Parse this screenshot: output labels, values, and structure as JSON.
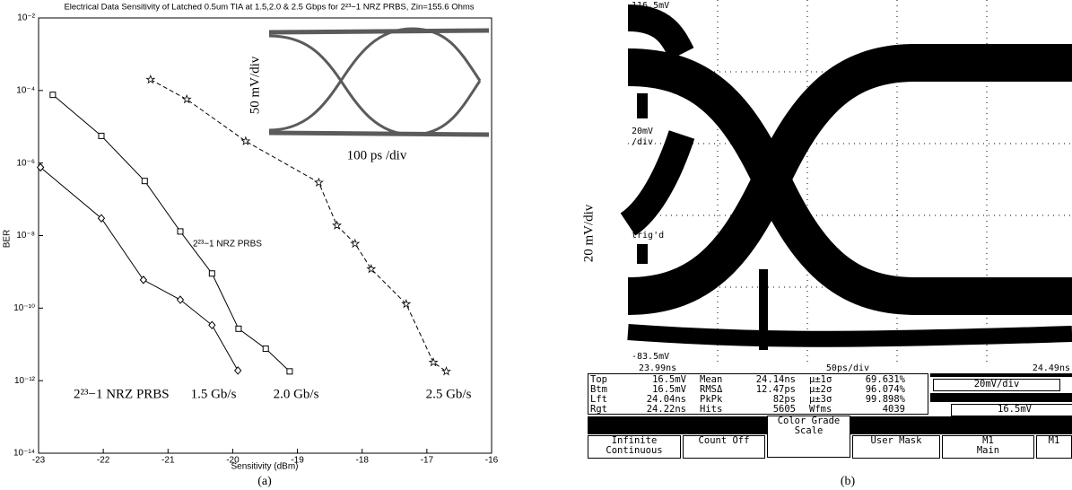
{
  "chart_data": {
    "type": "line",
    "title": "Electrical Data Sensitivity of Latched 0.5um TIA at 1.5,2.0 & 2.5 Gbps for 2²³−1 NRZ PRBS, Zin=155.6 Ohms",
    "x_label": "Sensitivity (dBm)",
    "y_label": "BER",
    "caption": "(a)",
    "xlim": [
      -23,
      -16
    ],
    "xticks": [
      -23,
      -22,
      -21,
      -20,
      -19,
      -18,
      -17,
      -16
    ],
    "ylim": [
      1e-14,
      0.01
    ],
    "log_y": true,
    "yticks": [
      {
        "value": 1e-14,
        "label": "10⁻¹⁴"
      },
      {
        "value": 1e-12,
        "label": "10⁻¹²"
      },
      {
        "value": 1e-10,
        "label": "10⁻¹⁰"
      },
      {
        "value": 1e-08,
        "label": "10⁻⁸"
      },
      {
        "value": 1e-06,
        "label": "10⁻⁶"
      },
      {
        "value": 0.0001,
        "label": "10⁻⁴"
      },
      {
        "value": 0.01,
        "label": "10⁻²"
      }
    ],
    "series": [
      {
        "name": "1.5 Gb/s",
        "color": "#000000",
        "marker": "diamond",
        "dashed": false,
        "x": [
          -22.97,
          -22.03,
          -21.38,
          -20.81,
          -20.32,
          -19.92
        ],
        "values": [
          7.6e-07,
          3e-08,
          6e-10,
          1.7e-10,
          3.4e-11,
          1.9e-12
        ]
      },
      {
        "name": "2.0 Gb/s",
        "color": "#000000",
        "marker": "square",
        "dashed": false,
        "x": [
          -22.78,
          -22.03,
          -21.36,
          -20.81,
          -20.32,
          -19.91,
          -19.49,
          -19.12
        ],
        "values": [
          7.6e-05,
          5.6e-06,
          3.2e-07,
          1.3e-08,
          9e-10,
          2.7e-11,
          7.6e-12,
          1.8e-12
        ]
      },
      {
        "name": "2.5 Gb/s",
        "color": "#000000",
        "marker": "star",
        "dashed": true,
        "x": [
          -21.27,
          -20.71,
          -19.8,
          -18.67,
          -18.39,
          -18.11,
          -17.86,
          -17.32,
          -16.9,
          -16.7
        ],
        "values": [
          0.0002,
          5.7e-05,
          4e-06,
          2.9e-07,
          1.9e-08,
          6e-09,
          1.2e-09,
          1.3e-10,
          3.2e-12,
          1.8e-12
        ]
      }
    ],
    "annotations": [
      "2²³−1 NRZ PRBS",
      "2²³−1 NRZ PRBS"
    ],
    "inset": {
      "y_label": "50 mV/div",
      "x_label": "100 ps /div"
    }
  },
  "scope": {
    "axis_label": "20 mV/div",
    "top_level": "116.5mV",
    "bottom_level": "-83.5mV",
    "time_start": "23.99ns",
    "time_scale": "50ps/div",
    "time_end": "24.49ns",
    "side_scale": [
      "20mV",
      "/div"
    ],
    "trig_status": "trig'd",
    "measurements": [
      [
        [
          "Top",
          "16.5mV"
        ],
        [
          "Mean",
          "24.14ns"
        ],
        [
          "μ±1σ",
          "69.631%"
        ]
      ],
      [
        [
          "Btm",
          "16.5mV"
        ],
        [
          "RMSΔ",
          "12.47ps"
        ],
        [
          "μ±2σ",
          "96.074%"
        ]
      ],
      [
        [
          "Lft",
          "24.04ns"
        ],
        [
          "PkPk",
          "82ps"
        ],
        [
          "μ±3σ",
          "99.898%"
        ]
      ],
      [
        [
          "Rgt",
          "24.22ns"
        ],
        [
          "Hits",
          "5605"
        ],
        [
          "Wfms",
          "4039"
        ]
      ]
    ],
    "readout": [
      "20mV/div",
      "16.5mV"
    ],
    "buttons": [
      [
        "Infinite",
        "Continuous"
      ],
      [
        "Count Off"
      ],
      [
        "Color Grade",
        "Scale"
      ],
      [
        "User Mask"
      ],
      [
        "M1",
        "Main"
      ],
      [
        "M1"
      ]
    ],
    "caption": "(b)"
  }
}
